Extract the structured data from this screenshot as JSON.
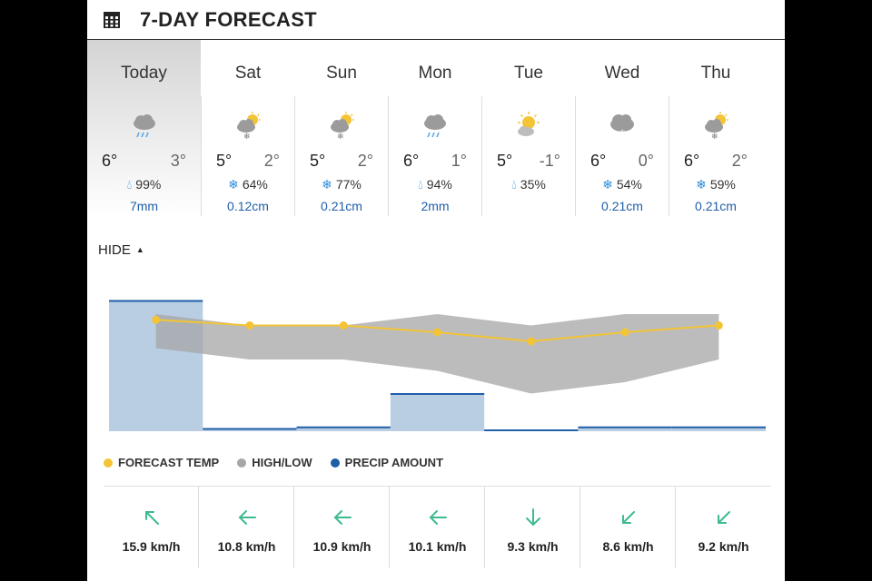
{
  "header": {
    "title": "7-DAY FORECAST",
    "icon": "calendar-icon"
  },
  "days": [
    {
      "name": "Today",
      "high": "6°",
      "low": "3°",
      "precip_icon": "raindrop-icon",
      "precip_prob": "99%",
      "precip_amount": "7mm",
      "weather_icon": "cloud-rain-icon"
    },
    {
      "name": "Sat",
      "high": "5°",
      "low": "2°",
      "precip_icon": "snowflake-icon",
      "precip_prob": "64%",
      "precip_amount": "0.12cm",
      "weather_icon": "sun-cloud-snow-icon"
    },
    {
      "name": "Sun",
      "high": "5°",
      "low": "2°",
      "precip_icon": "snowflake-icon",
      "precip_prob": "77%",
      "precip_amount": "0.21cm",
      "weather_icon": "sun-cloud-snow-icon"
    },
    {
      "name": "Mon",
      "high": "6°",
      "low": "1°",
      "precip_icon": "raindrop-icon",
      "precip_prob": "94%",
      "precip_amount": "2mm",
      "weather_icon": "cloud-rain-icon"
    },
    {
      "name": "Tue",
      "high": "5°",
      "low": "-1°",
      "precip_icon": "raindrop-icon",
      "precip_prob": "35%",
      "precip_amount": "",
      "weather_icon": "sun-cloud-icon"
    },
    {
      "name": "Wed",
      "high": "6°",
      "low": "0°",
      "precip_icon": "snowflake-icon",
      "precip_prob": "54%",
      "precip_amount": "0.21cm",
      "weather_icon": "cloud-snow-icon"
    },
    {
      "name": "Thu",
      "high": "6°",
      "low": "2°",
      "precip_icon": "snowflake-icon",
      "precip_prob": "59%",
      "precip_amount": "0.21cm",
      "weather_icon": "sun-cloud-snow-icon"
    }
  ],
  "toggle": {
    "label": "HIDE"
  },
  "legend": [
    {
      "label": "FORECAST TEMP",
      "color": "#f3c436"
    },
    {
      "label": "HIGH/LOW",
      "color": "#a6a6a6"
    },
    {
      "label": "PRECIP AMOUNT",
      "color": "#1f5fa8"
    }
  ],
  "chart_data": {
    "type": "line",
    "categories": [
      "Today",
      "Sat",
      "Sun",
      "Mon",
      "Tue",
      "Wed",
      "Thu"
    ],
    "series": [
      {
        "name": "FORECAST TEMP",
        "values": [
          5.5,
          5,
          5,
          4.4,
          3.6,
          4.4,
          5
        ]
      },
      {
        "name": "HIGH/LOW",
        "high": [
          6,
          5,
          5,
          6,
          5,
          6,
          6
        ],
        "low": [
          3,
          2,
          2,
          1,
          -1,
          0,
          2
        ]
      },
      {
        "name": "PRECIP AMOUNT",
        "values": [
          7,
          0.12,
          0.21,
          2,
          0,
          0.21,
          0.21
        ]
      }
    ],
    "colors": {
      "temp": "#f3c436",
      "band": "#a6a6a6",
      "precip_fill": "#b9cde3",
      "precip_line": "#1f5fa8"
    }
  },
  "wind": [
    {
      "speed": "15.9 km/h",
      "direction": "arrow-up-left-icon"
    },
    {
      "speed": "10.8 km/h",
      "direction": "arrow-left-icon"
    },
    {
      "speed": "10.9 km/h",
      "direction": "arrow-left-icon"
    },
    {
      "speed": "10.1 km/h",
      "direction": "arrow-left-icon"
    },
    {
      "speed": "9.3 km/h",
      "direction": "arrow-down-icon"
    },
    {
      "speed": "8.6 km/h",
      "direction": "arrow-down-left-icon"
    },
    {
      "speed": "9.2 km/h",
      "direction": "arrow-down-left-icon"
    }
  ]
}
